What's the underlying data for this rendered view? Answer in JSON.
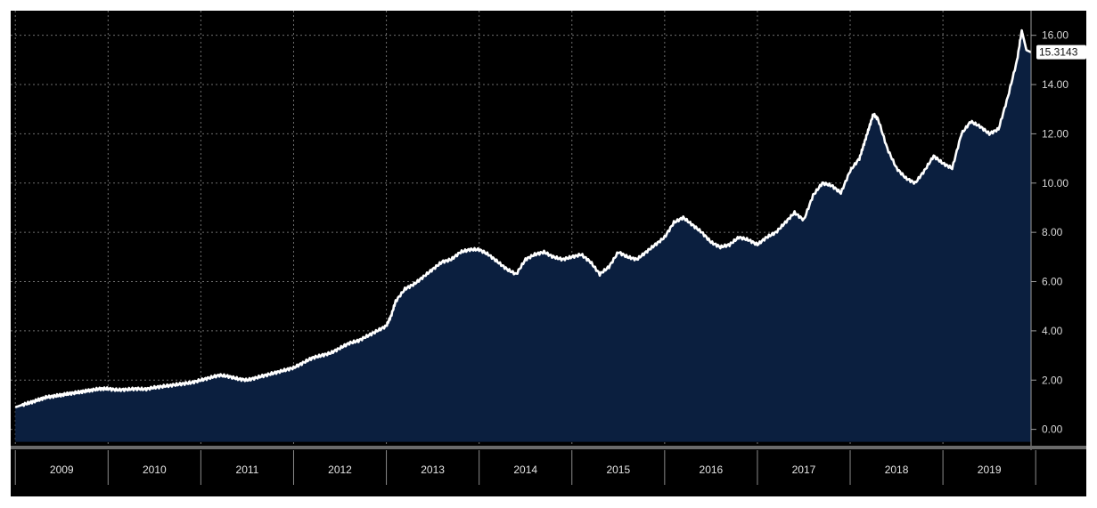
{
  "chart_data": {
    "type": "area",
    "title": "",
    "xlabel": "",
    "ylabel": "",
    "x_range": [
      2008.95,
      2019.95
    ],
    "ylim": [
      -0.7,
      17.0
    ],
    "grid": true,
    "legend": "none",
    "colors": {
      "background": "#000000",
      "area_fill": "#0b1f3f",
      "line": "#ffffff",
      "grid": "#6e6e6e",
      "axis_bar": "#000000",
      "last_value_box": "#ffffff"
    },
    "y_ticks": [
      {
        "value": 0,
        "label": "0.00"
      },
      {
        "value": 2,
        "label": "2.00"
      },
      {
        "value": 4,
        "label": "4.00"
      },
      {
        "value": 6,
        "label": "6.00"
      },
      {
        "value": 8,
        "label": "8.00"
      },
      {
        "value": 10,
        "label": "10.00"
      },
      {
        "value": 12,
        "label": "12.00"
      },
      {
        "value": 14,
        "label": "14.00"
      },
      {
        "value": 16,
        "label": "16.00"
      }
    ],
    "x_ticks": [
      {
        "value": 2009,
        "label": "2009"
      },
      {
        "value": 2010,
        "label": "2010"
      },
      {
        "value": 2011,
        "label": "2011"
      },
      {
        "value": 2012,
        "label": "2012"
      },
      {
        "value": 2013,
        "label": "2013"
      },
      {
        "value": 2014,
        "label": "2014"
      },
      {
        "value": 2015,
        "label": "2015"
      },
      {
        "value": 2016,
        "label": "2016"
      },
      {
        "value": 2017,
        "label": "2017"
      },
      {
        "value": 2018,
        "label": "2018"
      },
      {
        "value": 2019,
        "label": "2019"
      }
    ],
    "last_value": {
      "x": 2019.96,
      "y": 15.3143,
      "label": "15.3143"
    },
    "series": [
      {
        "x": [
          2009.0,
          2009.08,
          2009.17,
          2009.25,
          2009.33,
          2009.42,
          2009.5,
          2009.58,
          2009.67,
          2009.75,
          2009.83,
          2009.92,
          2010.0,
          2010.1,
          2010.2,
          2010.3,
          2010.4,
          2010.5,
          2010.6,
          2010.7,
          2010.8,
          2010.9,
          2011.0,
          2011.1,
          2011.2,
          2011.3,
          2011.4,
          2011.5,
          2011.6,
          2011.7,
          2011.8,
          2011.9,
          2012.0,
          2012.1,
          2012.2,
          2012.3,
          2012.4,
          2012.5,
          2012.6,
          2012.7,
          2012.8,
          2012.9,
          2013.0,
          2013.05,
          2013.1,
          2013.2,
          2013.3,
          2013.4,
          2013.5,
          2013.6,
          2013.7,
          2013.8,
          2013.9,
          2014.0,
          2014.1,
          2014.2,
          2014.3,
          2014.4,
          2014.5,
          2014.6,
          2014.7,
          2014.8,
          2014.9,
          2015.0,
          2015.1,
          2015.2,
          2015.3,
          2015.4,
          2015.5,
          2015.6,
          2015.7,
          2015.8,
          2015.9,
          2016.0,
          2016.1,
          2016.2,
          2016.3,
          2016.4,
          2016.5,
          2016.6,
          2016.7,
          2016.8,
          2016.9,
          2017.0,
          2017.1,
          2017.2,
          2017.3,
          2017.4,
          2017.5,
          2017.6,
          2017.7,
          2017.8,
          2017.9,
          2018.0,
          2018.1,
          2018.15,
          2018.2,
          2018.25,
          2018.3,
          2018.4,
          2018.5,
          2018.6,
          2018.7,
          2018.8,
          2018.9,
          2019.0,
          2019.1,
          2019.2,
          2019.3,
          2019.4,
          2019.5,
          2019.6,
          2019.7,
          2019.8,
          2019.85,
          2019.9,
          2019.95
        ],
        "y": [
          0.9,
          1.0,
          1.1,
          1.2,
          1.3,
          1.35,
          1.4,
          1.45,
          1.5,
          1.55,
          1.6,
          1.65,
          1.65,
          1.6,
          1.62,
          1.65,
          1.63,
          1.7,
          1.75,
          1.8,
          1.85,
          1.9,
          2.0,
          2.1,
          2.2,
          2.15,
          2.05,
          2.0,
          2.1,
          2.2,
          2.3,
          2.4,
          2.5,
          2.7,
          2.9,
          3.0,
          3.1,
          3.3,
          3.5,
          3.6,
          3.8,
          4.0,
          4.2,
          4.6,
          5.2,
          5.7,
          5.9,
          6.2,
          6.5,
          6.8,
          6.9,
          7.2,
          7.3,
          7.3,
          7.1,
          6.8,
          6.5,
          6.3,
          6.9,
          7.1,
          7.2,
          7.0,
          6.9,
          7.0,
          7.1,
          6.8,
          6.3,
          6.6,
          7.2,
          7.0,
          6.9,
          7.2,
          7.5,
          7.8,
          8.4,
          8.6,
          8.3,
          8.0,
          7.6,
          7.4,
          7.5,
          7.8,
          7.7,
          7.5,
          7.8,
          8.0,
          8.4,
          8.8,
          8.5,
          9.5,
          10.0,
          9.9,
          9.6,
          10.5,
          11.0,
          11.6,
          12.2,
          12.8,
          12.6,
          11.4,
          10.6,
          10.2,
          10.0,
          10.5,
          11.1,
          10.8,
          10.6,
          12.0,
          12.5,
          12.3,
          12.0,
          12.2,
          13.5,
          15.0,
          16.2,
          15.4,
          15.3143
        ]
      }
    ]
  }
}
